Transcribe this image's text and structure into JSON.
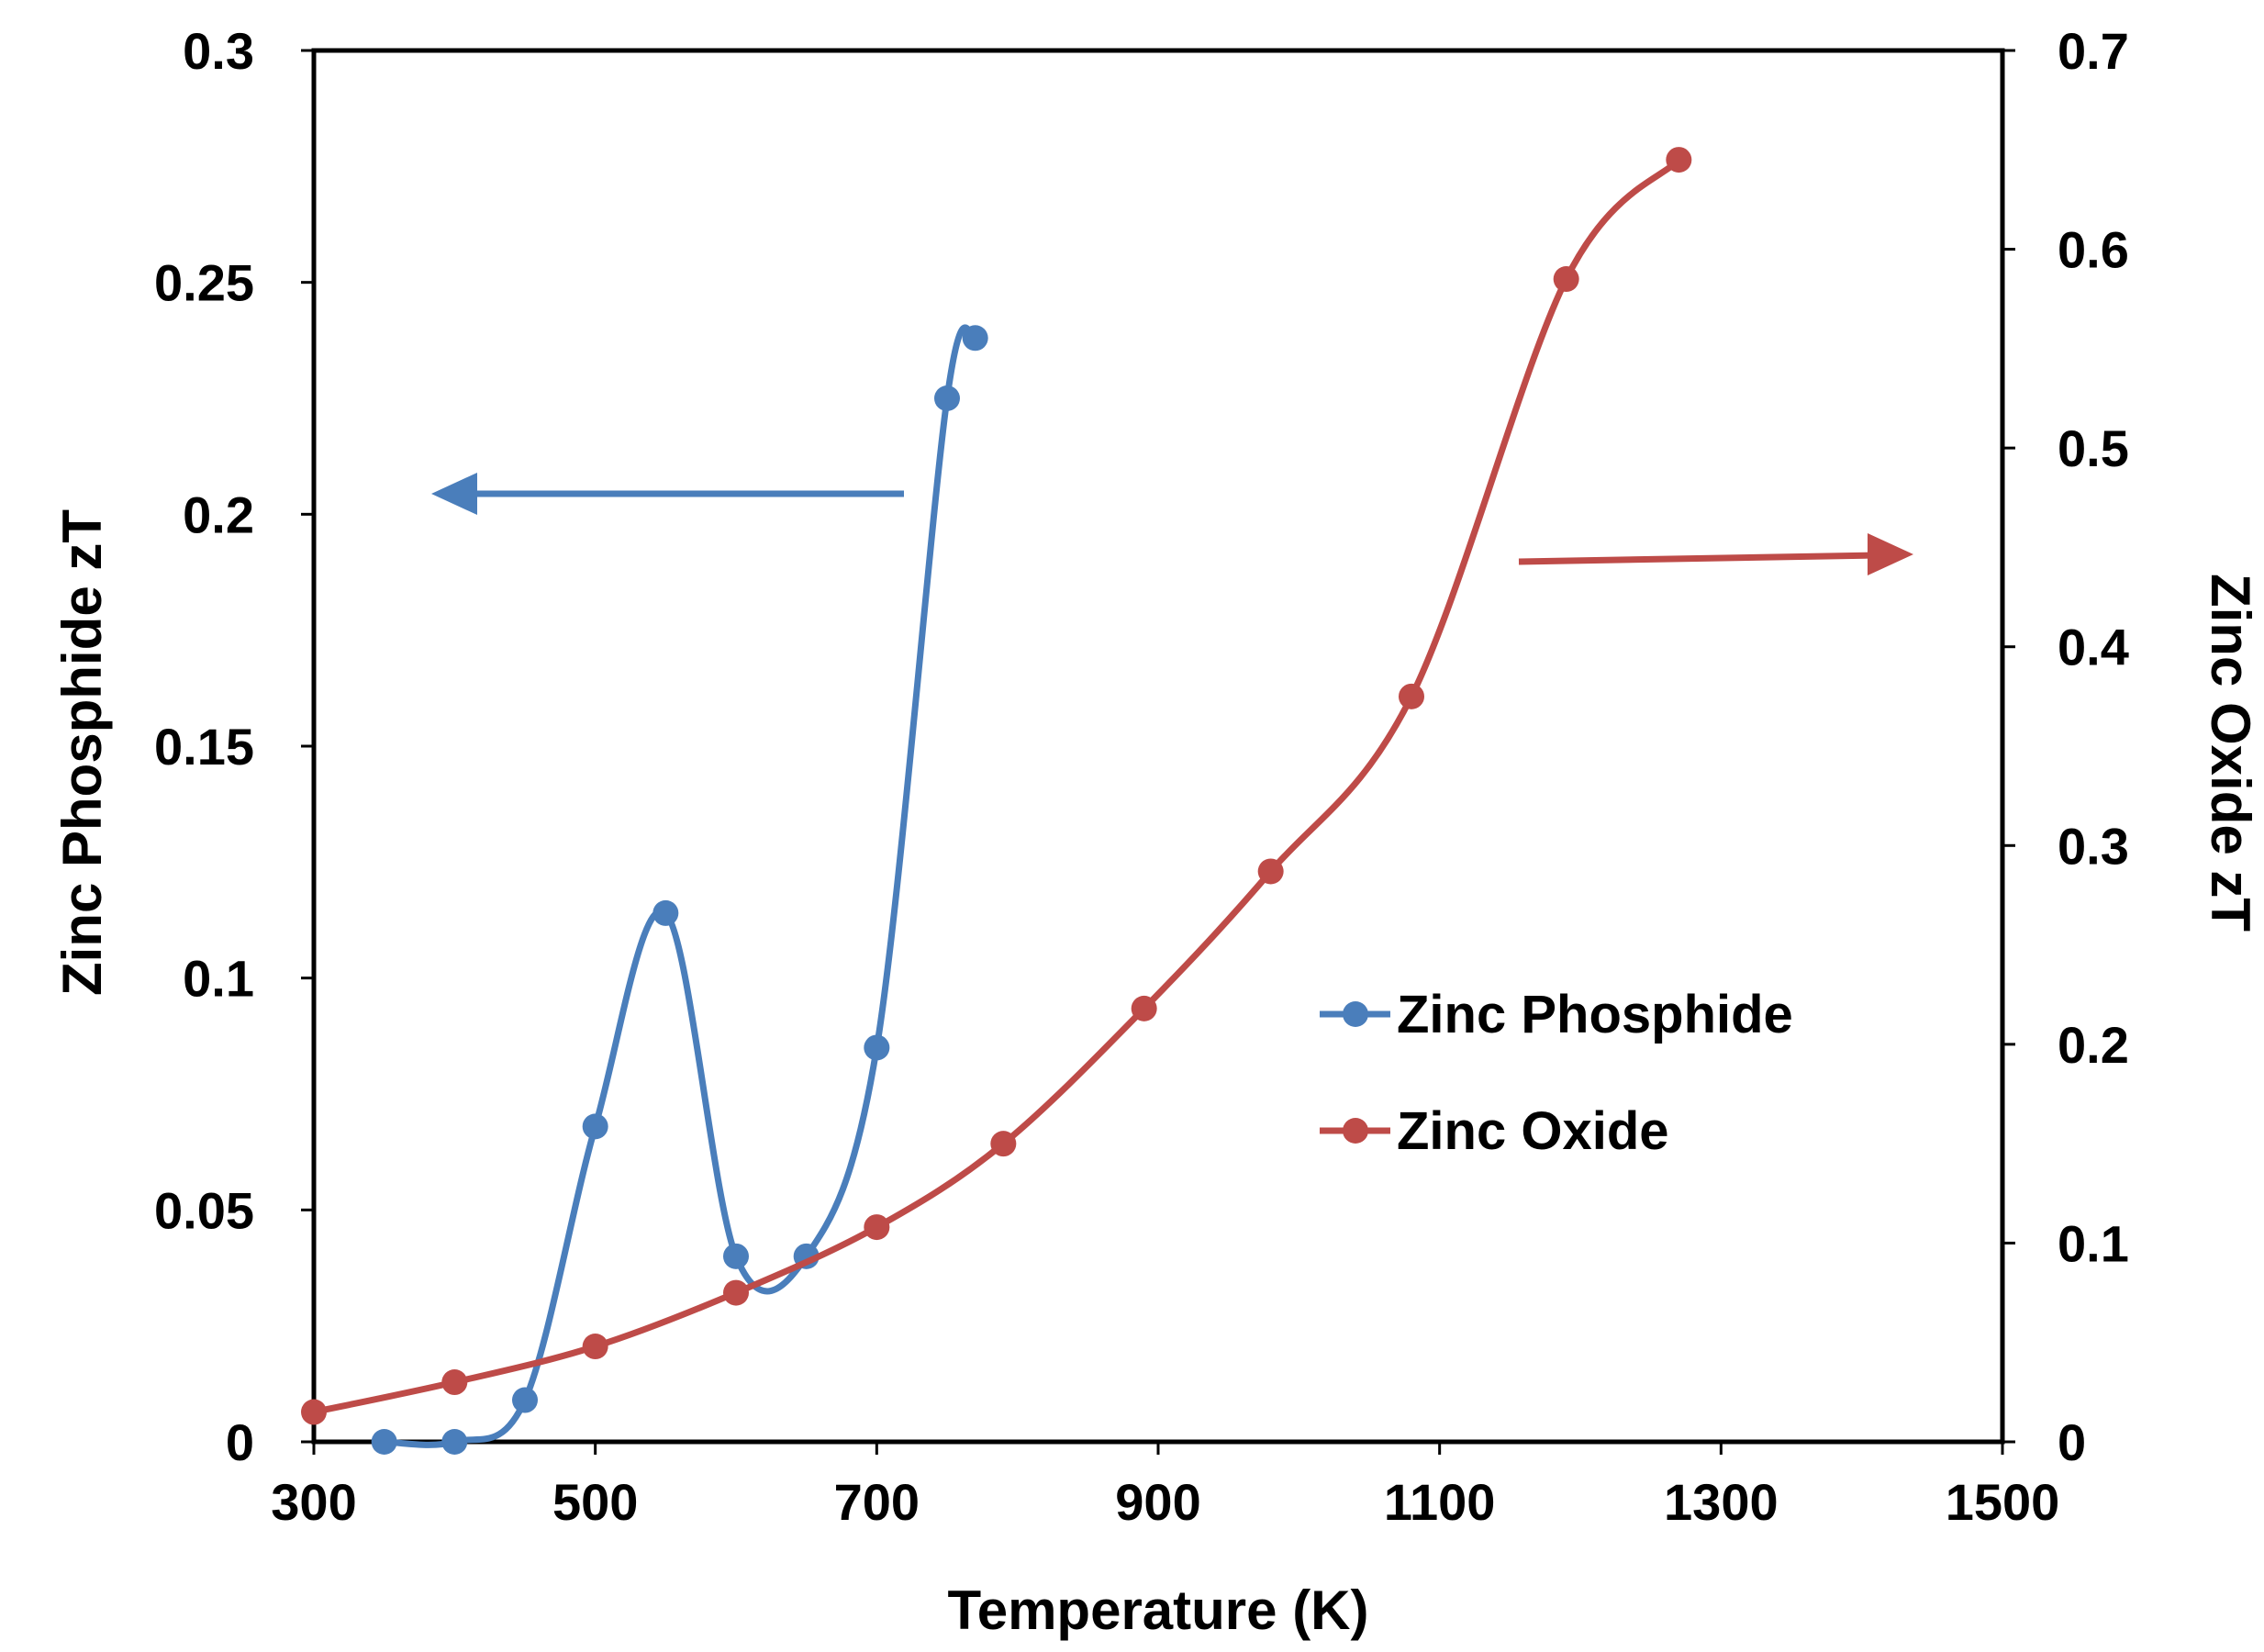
{
  "chart_data": {
    "type": "line",
    "title": "",
    "xlabel": "Temperature (K)",
    "ylabel_left": "Zinc Phosphide zT",
    "ylabel_right": "Zinc Oxide zT",
    "xlim": [
      300,
      1500
    ],
    "ylim_left": [
      0,
      0.3
    ],
    "ylim_right": [
      0,
      0.7
    ],
    "x_ticks": [
      "300",
      "500",
      "700",
      "900",
      "1100",
      "1300",
      "1500"
    ],
    "y_left_ticks": [
      "0",
      "0.05",
      "0.1",
      "0.15",
      "0.2",
      "0.25",
      "0.3"
    ],
    "y_right_ticks": [
      "0",
      "0.1",
      "0.2",
      "0.3",
      "0.4",
      "0.5",
      "0.6",
      "0.7"
    ],
    "grid": false,
    "legend_position": "center-right",
    "series": [
      {
        "name": "Zinc Phosphide",
        "axis": "left",
        "color": "#4A7EBB",
        "x": [
          350,
          400,
          450,
          500,
          550,
          600,
          650,
          700,
          750,
          770
        ],
        "y": [
          0.0,
          0.0,
          0.009,
          0.068,
          0.114,
          0.04,
          0.04,
          0.085,
          0.225,
          0.238
        ]
      },
      {
        "name": "Zinc Oxide",
        "axis": "right",
        "color": "#BE4B48",
        "x": [
          300,
          400,
          500,
          600,
          700,
          790,
          890,
          980,
          1080,
          1190,
          1270
        ],
        "y": [
          0.015,
          0.03,
          0.048,
          0.075,
          0.108,
          0.15,
          0.218,
          0.287,
          0.375,
          0.585,
          0.645
        ]
      }
    ],
    "annotations": [
      {
        "type": "arrow",
        "direction": "left",
        "color": "#4A7EBB",
        "meaning": "points to left axis"
      },
      {
        "type": "arrow",
        "direction": "right",
        "color": "#BE4B48",
        "meaning": "points to right axis"
      }
    ]
  }
}
